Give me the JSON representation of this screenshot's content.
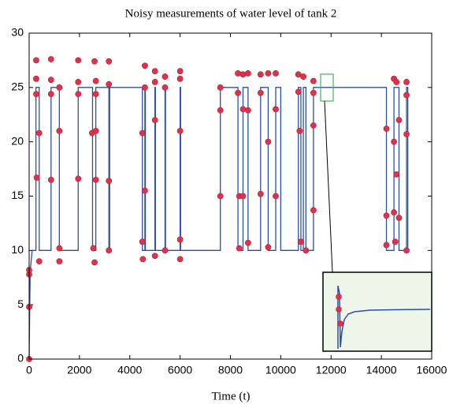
{
  "chart_data": {
    "type": "line",
    "title": "Noisy measurements of water level of tank 2",
    "x_label": "Time (t)",
    "xlim": [
      0,
      16000
    ],
    "ylim": [
      0,
      30
    ],
    "xticks": [
      0,
      2000,
      4000,
      6000,
      8000,
      10000,
      12000,
      14000,
      16000
    ],
    "yticks": [
      0,
      5,
      10,
      15,
      20,
      25,
      30
    ],
    "grid": false,
    "series": [
      {
        "color": "#2b4fa6",
        "marker": false,
        "x": [
          0,
          40,
          120,
          270,
          270,
          400,
          400,
          870,
          870,
          1200,
          1200,
          1950,
          1950,
          2520,
          2520,
          2650,
          2650,
          3170,
          3170,
          3200,
          3200,
          4500,
          4500,
          4600,
          4600,
          4620,
          4620,
          5000,
          5000,
          5020,
          5020,
          5400,
          5400,
          5420,
          5420,
          6000,
          6000,
          6020,
          6020,
          7600,
          7600,
          8300,
          8300,
          8500,
          8500,
          8700,
          8700,
          9200,
          9200,
          9500,
          9500,
          9800,
          9800,
          10000,
          10000,
          10700,
          10700,
          10800,
          10800,
          10900,
          10900,
          11000,
          11000,
          11300,
          11300,
          14200,
          14200,
          14500,
          14500,
          14700,
          14700,
          15000,
          15000,
          15050,
          15050,
          15100
        ],
        "values": [
          0,
          8,
          10,
          10,
          25,
          25,
          10,
          10,
          25,
          25,
          10,
          10,
          25,
          25,
          10,
          10,
          25,
          25,
          10,
          10,
          25,
          25,
          10,
          10,
          25,
          25,
          10,
          10,
          25,
          25,
          10,
          10,
          25,
          25,
          10,
          10,
          25,
          25,
          10,
          10,
          25,
          25,
          10,
          10,
          25,
          25,
          10,
          10,
          25,
          25,
          10,
          10,
          25,
          25,
          10,
          10,
          25,
          25,
          10,
          10,
          25,
          25,
          10,
          10,
          25,
          25,
          10,
          10,
          25,
          25,
          10,
          10,
          25,
          25,
          10,
          10
        ]
      },
      {
        "color": "#e0314b",
        "marker": true,
        "x": [
          0,
          0,
          0,
          0,
          280,
          280,
          280,
          300,
          400,
          400,
          870,
          870,
          870,
          870,
          1200,
          1200,
          1200,
          1200,
          1950,
          1950,
          1950,
          1950,
          2500,
          2550,
          2600,
          2600,
          2650,
          2650,
          2650,
          2650,
          3170,
          3170,
          3170,
          3170,
          4500,
          4500,
          4520,
          4600,
          4600,
          4600,
          5000,
          5000,
          5000,
          5000,
          5400,
          5400,
          5400,
          6000,
          6000,
          6000,
          6000,
          6000,
          7600,
          7600,
          7600,
          8300,
          8300,
          8350,
          8350,
          8500,
          8500,
          8500,
          8700,
          8700,
          8700,
          9200,
          9200,
          9200,
          9500,
          9500,
          9500,
          9800,
          9800,
          9800,
          10700,
          10700,
          10750,
          10800,
          10900,
          11000,
          11300,
          11300,
          11300,
          11300,
          14200,
          14200,
          14200,
          14500,
          14500,
          14500,
          14550,
          14600,
          14600,
          14700,
          14700,
          15000,
          15000,
          15000,
          15000
        ],
        "values": [
          0,
          4.8,
          7.8,
          8.2,
          27.5,
          25.8,
          24.4,
          16.7,
          20.8,
          9,
          27.6,
          25.7,
          24.4,
          16.5,
          25,
          21,
          10.2,
          9,
          27.5,
          25.5,
          24.4,
          16.6,
          20.8,
          10.2,
          8.9,
          27.4,
          25.6,
          24.4,
          16.5,
          21,
          27.4,
          25.3,
          16.4,
          10,
          20.8,
          10.8,
          9.2,
          27,
          25,
          15.5,
          26.5,
          25.5,
          22,
          9.5,
          26,
          25,
          10,
          26.5,
          25.8,
          21,
          11,
          9.2,
          25,
          22.9,
          15,
          26.3,
          24.5,
          15,
          10.2,
          26.2,
          23,
          15,
          26.3,
          22.9,
          10.7,
          26.2,
          24.5,
          15.2,
          26.3,
          20,
          10.3,
          26.3,
          23,
          15,
          26.2,
          24.6,
          21,
          10.8,
          26,
          10,
          25.6,
          24.5,
          21.5,
          13.7,
          21.2,
          13.2,
          10.5,
          25.8,
          20,
          13.5,
          10.8,
          25.5,
          17,
          22,
          13,
          25.5,
          24.3,
          20.7,
          10
        ]
      }
    ]
  }
}
